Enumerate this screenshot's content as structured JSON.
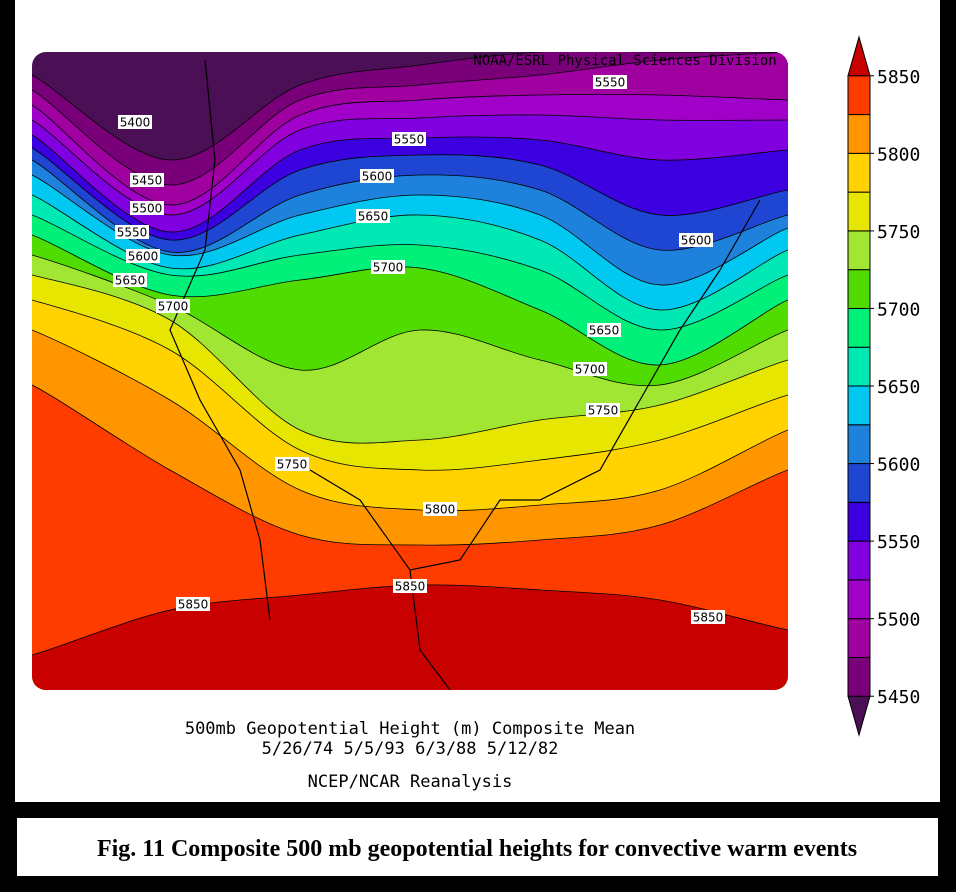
{
  "header": {
    "source": "NOAA/ESRL Physical Sciences Division"
  },
  "map": {
    "contour_labels": [
      5550,
      5400,
      5550,
      5450,
      5600,
      5500,
      5650,
      5550,
      5600,
      5600,
      5700,
      5650,
      5700,
      5650,
      5700,
      5750,
      5750,
      5800,
      5850,
      5850,
      5850
    ]
  },
  "colorbar": {
    "lim": [
      5425,
      5875
    ],
    "ticks": [
      5450,
      5500,
      5550,
      5600,
      5650,
      5700,
      5750,
      5800,
      5850
    ],
    "colors": [
      "#4b0f55",
      "#7a007a",
      "#a000a0",
      "#a000c8",
      "#8000e0",
      "#3c00e0",
      "#1e46d2",
      "#1e82dc",
      "#00c8f0",
      "#00e8b4",
      "#00f07a",
      "#50dc00",
      "#a0e632",
      "#e6e600",
      "#ffd200",
      "#ff9600",
      "#ff3c00",
      "#c80000"
    ]
  },
  "footer": {
    "title": "500mb Geopotential Height (m) Composite Mean",
    "dates": "5/26/74 5/5/93 6/3/88 5/12/82",
    "source": "NCEP/NCAR Reanalysis"
  },
  "caption": "Fig. 11 Composite 500 mb geopotential heights for convective warm events"
}
